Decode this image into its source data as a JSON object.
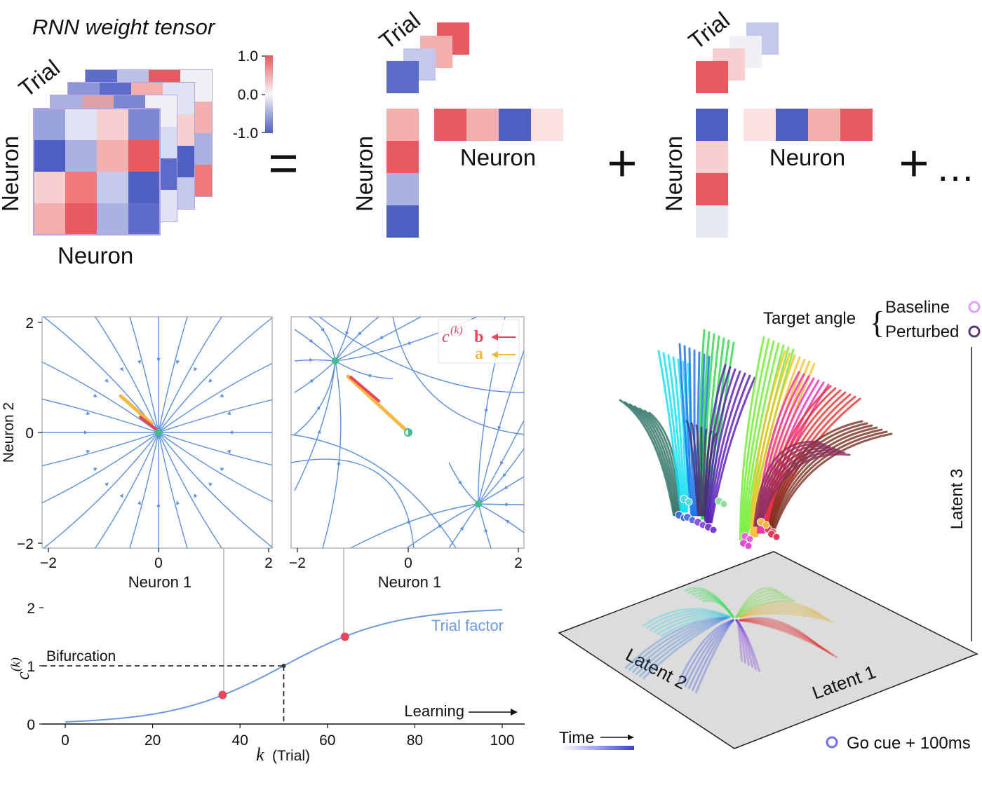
{
  "tensor_panel": {
    "title": "RNN weight tensor",
    "trial_label": "Trial",
    "neuron_label_y": "Neuron",
    "neuron_label_x": "Neuron",
    "colorbar_ticks": [
      "1.0",
      "0.0",
      "-1.0"
    ],
    "equals_sign": "=",
    "plus_sign": "+",
    "ellipsis": "…",
    "component1": {
      "trial_label": "Trial",
      "neuron_label_y": "Neuron",
      "neuron_label_x": "Neuron"
    },
    "component2": {
      "trial_label": "Trial",
      "neuron_label_y": "Neuron",
      "neuron_label_x": "Neuron"
    },
    "colors": {
      "strong_red": "#e85a5f",
      "light_red": "#f3aeae",
      "pale": "#eef0f6",
      "light_blue": "#aab2e0",
      "strong_blue": "#4d5fc0"
    }
  },
  "phase_portraits": {
    "ylabel": "Neuron 2",
    "left_xlabel": "Neuron 1",
    "right_xlabel": "Neuron 1",
    "x_ticks": [
      "−2",
      "0",
      "2"
    ],
    "y_ticks": [
      "2",
      "0",
      "−2"
    ],
    "legend": {
      "c_label": "c",
      "c_superscript": "(k)",
      "b_label": "b",
      "a_label": "a"
    },
    "colors": {
      "stream": "#5b8fe0",
      "fixed_point": "#3fbf8a",
      "vector_b": "#e8455a",
      "vector_a": "#f5b942"
    }
  },
  "chart_data": {
    "type": "line",
    "series": [
      {
        "name": "Trial factor",
        "x": [
          0,
          10,
          20,
          30,
          36,
          40,
          50,
          60,
          64,
          70,
          80,
          90,
          100
        ],
        "y": [
          0.03,
          0.08,
          0.18,
          0.36,
          0.5,
          0.6,
          1.0,
          1.4,
          1.5,
          1.64,
          1.82,
          1.92,
          1.96
        ]
      }
    ],
    "xlabel_italic": "k",
    "xlabel_rest": "(Trial)",
    "ylabel": "c",
    "ylabel_superscript": "(k)",
    "x_ticks": [
      "0",
      "20",
      "40",
      "60",
      "80",
      "100"
    ],
    "y_ticks": [
      "0",
      "1",
      "2"
    ],
    "xlim": [
      -5,
      105
    ],
    "ylim": [
      0,
      2.2
    ],
    "annotations": {
      "bifurcation": "Bifurcation",
      "learning": "Learning"
    },
    "bifurcation_point": {
      "x": 50,
      "y": 1
    },
    "highlight_points": [
      {
        "x": 36,
        "y": 0.5
      },
      {
        "x": 64,
        "y": 1.5
      }
    ],
    "colors": {
      "line": "#6a9ae0",
      "highlight": "#e8455a"
    }
  },
  "latent_panel": {
    "legend_title": "Target angle",
    "legend_baseline": "Baseline",
    "legend_perturbed": "Perturbed",
    "axis_latent1": "Latent 1",
    "axis_latent2": "Latent 2",
    "axis_latent3": "Latent 3",
    "time_label": "Time",
    "go_cue_label": "Go cue + 100ms",
    "colors": {
      "floor": "#dcdcdc",
      "go_cue": "#6f73e8"
    }
  }
}
